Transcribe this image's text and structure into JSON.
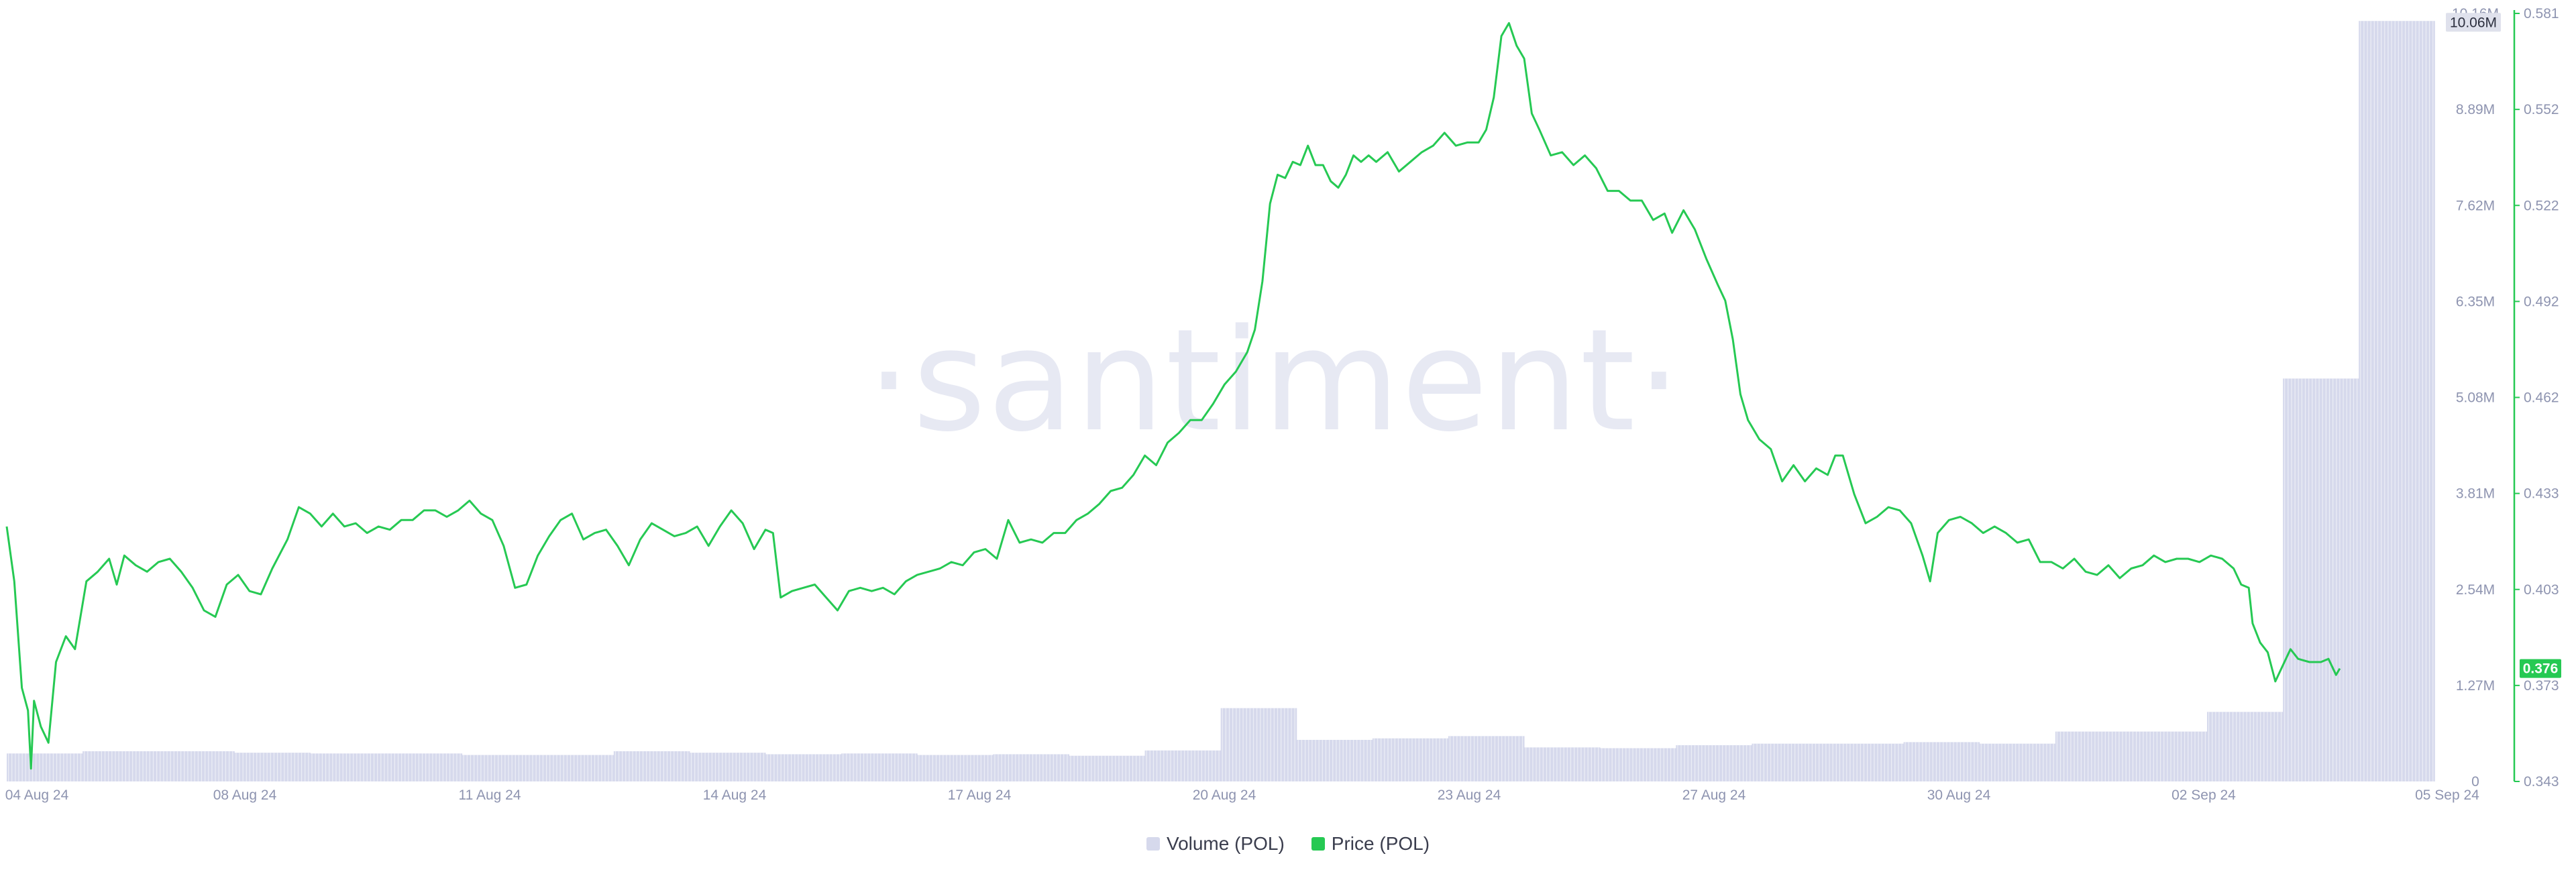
{
  "chart_data": {
    "type": "bar+line",
    "watermark": "·santiment·",
    "x_ticks": [
      "04 Aug 24",
      "08 Aug 24",
      "11 Aug 24",
      "14 Aug 24",
      "17 Aug 24",
      "20 Aug 24",
      "23 Aug 24",
      "27 Aug 24",
      "30 Aug 24",
      "02 Sep 24",
      "05 Sep 24"
    ],
    "x_range": [
      "04 Aug 24",
      "05 Sep 24"
    ],
    "volume_axis": {
      "ticks": [
        "0",
        "1.27M",
        "2.54M",
        "3.81M",
        "5.08M",
        "6.35M",
        "7.62M",
        "8.89M",
        "10.16M"
      ],
      "range": [
        0,
        10.16
      ],
      "unit": "M"
    },
    "price_axis": {
      "ticks": [
        "0.343",
        "0.373",
        "0.403",
        "0.433",
        "0.462",
        "0.492",
        "0.522",
        "0.552",
        "0.581"
      ],
      "range": [
        0.343,
        0.581
      ]
    },
    "volume_current_label": "10.06M",
    "price_current_label": "0.376",
    "series": [
      {
        "name": "Volume (POL)",
        "color": "#d6d9ec",
        "kind": "bar",
        "values_millions": [
          {
            "x": 0.0,
            "v": 0.37
          },
          {
            "x": 1.0,
            "v": 0.4
          },
          {
            "x": 2.0,
            "v": 0.4
          },
          {
            "x": 3.0,
            "v": 0.38
          },
          {
            "x": 4.0,
            "v": 0.37
          },
          {
            "x": 5.0,
            "v": 0.37
          },
          {
            "x": 6.0,
            "v": 0.35
          },
          {
            "x": 7.0,
            "v": 0.35
          },
          {
            "x": 8.0,
            "v": 0.4
          },
          {
            "x": 9.0,
            "v": 0.38
          },
          {
            "x": 10.0,
            "v": 0.36
          },
          {
            "x": 11.0,
            "v": 0.37
          },
          {
            "x": 12.0,
            "v": 0.35
          },
          {
            "x": 13.0,
            "v": 0.36
          },
          {
            "x": 14.0,
            "v": 0.34
          },
          {
            "x": 15.0,
            "v": 0.41
          },
          {
            "x": 16.0,
            "v": 0.97
          },
          {
            "x": 17.0,
            "v": 0.55
          },
          {
            "x": 18.0,
            "v": 0.57
          },
          {
            "x": 19.0,
            "v": 0.6
          },
          {
            "x": 20.0,
            "v": 0.45
          },
          {
            "x": 21.0,
            "v": 0.44
          },
          {
            "x": 22.0,
            "v": 0.48
          },
          {
            "x": 23.0,
            "v": 0.5
          },
          {
            "x": 24.0,
            "v": 0.5
          },
          {
            "x": 25.0,
            "v": 0.52
          },
          {
            "x": 26.0,
            "v": 0.5
          },
          {
            "x": 27.0,
            "v": 0.66
          },
          {
            "x": 28.0,
            "v": 0.66
          },
          {
            "x": 29.0,
            "v": 0.92
          },
          {
            "x": 30.0,
            "v": 5.33
          },
          {
            "x": 31.0,
            "v": 10.06
          }
        ]
      },
      {
        "name": "Price (POL)",
        "color": "#26c953",
        "kind": "line",
        "points": [
          [
            0.0,
            0.422
          ],
          [
            0.1,
            0.405
          ],
          [
            0.2,
            0.372
          ],
          [
            0.28,
            0.365
          ],
          [
            0.32,
            0.347
          ],
          [
            0.36,
            0.368
          ],
          [
            0.45,
            0.36
          ],
          [
            0.55,
            0.355
          ],
          [
            0.65,
            0.38
          ],
          [
            0.78,
            0.388
          ],
          [
            0.9,
            0.384
          ],
          [
            1.05,
            0.405
          ],
          [
            1.2,
            0.408
          ],
          [
            1.35,
            0.412
          ],
          [
            1.45,
            0.404
          ],
          [
            1.55,
            0.413
          ],
          [
            1.7,
            0.41
          ],
          [
            1.85,
            0.408
          ],
          [
            2.0,
            0.411
          ],
          [
            2.15,
            0.412
          ],
          [
            2.3,
            0.408
          ],
          [
            2.45,
            0.403
          ],
          [
            2.6,
            0.396
          ],
          [
            2.75,
            0.394
          ],
          [
            2.9,
            0.404
          ],
          [
            3.05,
            0.407
          ],
          [
            3.2,
            0.402
          ],
          [
            3.35,
            0.401
          ],
          [
            3.5,
            0.409
          ],
          [
            3.7,
            0.418
          ],
          [
            3.85,
            0.428
          ],
          [
            4.0,
            0.426
          ],
          [
            4.15,
            0.422
          ],
          [
            4.3,
            0.426
          ],
          [
            4.45,
            0.422
          ],
          [
            4.6,
            0.423
          ],
          [
            4.75,
            0.42
          ],
          [
            4.9,
            0.422
          ],
          [
            5.05,
            0.421
          ],
          [
            5.2,
            0.424
          ],
          [
            5.35,
            0.424
          ],
          [
            5.5,
            0.427
          ],
          [
            5.65,
            0.427
          ],
          [
            5.8,
            0.425
          ],
          [
            5.95,
            0.427
          ],
          [
            6.1,
            0.43
          ],
          [
            6.25,
            0.426
          ],
          [
            6.4,
            0.424
          ],
          [
            6.55,
            0.416
          ],
          [
            6.7,
            0.403
          ],
          [
            6.85,
            0.404
          ],
          [
            7.0,
            0.413
          ],
          [
            7.15,
            0.419
          ],
          [
            7.3,
            0.424
          ],
          [
            7.45,
            0.426
          ],
          [
            7.6,
            0.418
          ],
          [
            7.75,
            0.42
          ],
          [
            7.9,
            0.421
          ],
          [
            8.05,
            0.416
          ],
          [
            8.2,
            0.41
          ],
          [
            8.35,
            0.418
          ],
          [
            8.5,
            0.423
          ],
          [
            8.65,
            0.421
          ],
          [
            8.8,
            0.419
          ],
          [
            8.95,
            0.42
          ],
          [
            9.1,
            0.422
          ],
          [
            9.25,
            0.416
          ],
          [
            9.4,
            0.422
          ],
          [
            9.55,
            0.427
          ],
          [
            9.7,
            0.423
          ],
          [
            9.85,
            0.415
          ],
          [
            10.0,
            0.421
          ],
          [
            10.1,
            0.42
          ],
          [
            10.2,
            0.4
          ],
          [
            10.35,
            0.402
          ],
          [
            10.5,
            0.403
          ],
          [
            10.65,
            0.404
          ],
          [
            10.8,
            0.4
          ],
          [
            10.95,
            0.396
          ],
          [
            11.1,
            0.402
          ],
          [
            11.25,
            0.403
          ],
          [
            11.4,
            0.402
          ],
          [
            11.55,
            0.403
          ],
          [
            11.7,
            0.401
          ],
          [
            11.85,
            0.405
          ],
          [
            12.0,
            0.407
          ],
          [
            12.15,
            0.408
          ],
          [
            12.3,
            0.409
          ],
          [
            12.45,
            0.411
          ],
          [
            12.6,
            0.41
          ],
          [
            12.75,
            0.414
          ],
          [
            12.9,
            0.415
          ],
          [
            13.05,
            0.412
          ],
          [
            13.2,
            0.424
          ],
          [
            13.35,
            0.417
          ],
          [
            13.5,
            0.418
          ],
          [
            13.65,
            0.417
          ],
          [
            13.8,
            0.42
          ],
          [
            13.95,
            0.42
          ],
          [
            14.1,
            0.424
          ],
          [
            14.25,
            0.426
          ],
          [
            14.4,
            0.429
          ],
          [
            14.55,
            0.433
          ],
          [
            14.7,
            0.434
          ],
          [
            14.85,
            0.438
          ],
          [
            15.0,
            0.444
          ],
          [
            15.15,
            0.441
          ],
          [
            15.3,
            0.448
          ],
          [
            15.45,
            0.451
          ],
          [
            15.6,
            0.455
          ],
          [
            15.75,
            0.455
          ],
          [
            15.9,
            0.46
          ],
          [
            16.05,
            0.466
          ],
          [
            16.2,
            0.47
          ],
          [
            16.35,
            0.476
          ],
          [
            16.45,
            0.483
          ],
          [
            16.55,
            0.498
          ],
          [
            16.65,
            0.522
          ],
          [
            16.75,
            0.531
          ],
          [
            16.85,
            0.53
          ],
          [
            16.95,
            0.535
          ],
          [
            17.05,
            0.534
          ],
          [
            17.15,
            0.54
          ],
          [
            17.25,
            0.534
          ],
          [
            17.35,
            0.534
          ],
          [
            17.45,
            0.529
          ],
          [
            17.55,
            0.527
          ],
          [
            17.65,
            0.531
          ],
          [
            17.75,
            0.537
          ],
          [
            17.85,
            0.535
          ],
          [
            17.95,
            0.537
          ],
          [
            18.05,
            0.535
          ],
          [
            18.2,
            0.538
          ],
          [
            18.35,
            0.532
          ],
          [
            18.5,
            0.535
          ],
          [
            18.65,
            0.538
          ],
          [
            18.8,
            0.54
          ],
          [
            18.95,
            0.544
          ],
          [
            19.1,
            0.54
          ],
          [
            19.25,
            0.541
          ],
          [
            19.4,
            0.541
          ],
          [
            19.5,
            0.545
          ],
          [
            19.6,
            0.555
          ],
          [
            19.7,
            0.574
          ],
          [
            19.8,
            0.578
          ],
          [
            19.9,
            0.571
          ],
          [
            20.0,
            0.567
          ],
          [
            20.1,
            0.55
          ],
          [
            20.2,
            0.545
          ],
          [
            20.35,
            0.537
          ],
          [
            20.5,
            0.538
          ],
          [
            20.65,
            0.534
          ],
          [
            20.8,
            0.537
          ],
          [
            20.95,
            0.533
          ],
          [
            21.1,
            0.526
          ],
          [
            21.25,
            0.526
          ],
          [
            21.4,
            0.523
          ],
          [
            21.55,
            0.523
          ],
          [
            21.7,
            0.517
          ],
          [
            21.85,
            0.519
          ],
          [
            21.95,
            0.513
          ],
          [
            22.1,
            0.52
          ],
          [
            22.25,
            0.514
          ],
          [
            22.4,
            0.505
          ],
          [
            22.55,
            0.497
          ],
          [
            22.65,
            0.492
          ],
          [
            22.75,
            0.48
          ],
          [
            22.85,
            0.463
          ],
          [
            22.95,
            0.455
          ],
          [
            23.1,
            0.449
          ],
          [
            23.25,
            0.446
          ],
          [
            23.4,
            0.436
          ],
          [
            23.55,
            0.441
          ],
          [
            23.7,
            0.436
          ],
          [
            23.85,
            0.44
          ],
          [
            24.0,
            0.438
          ],
          [
            24.1,
            0.444
          ],
          [
            24.2,
            0.444
          ],
          [
            24.35,
            0.432
          ],
          [
            24.5,
            0.423
          ],
          [
            24.65,
            0.425
          ],
          [
            24.8,
            0.428
          ],
          [
            24.95,
            0.427
          ],
          [
            25.1,
            0.423
          ],
          [
            25.25,
            0.413
          ],
          [
            25.35,
            0.405
          ],
          [
            25.45,
            0.42
          ],
          [
            25.6,
            0.424
          ],
          [
            25.75,
            0.425
          ],
          [
            25.9,
            0.423
          ],
          [
            26.05,
            0.42
          ],
          [
            26.2,
            0.422
          ],
          [
            26.35,
            0.42
          ],
          [
            26.5,
            0.417
          ],
          [
            26.65,
            0.418
          ],
          [
            26.8,
            0.411
          ],
          [
            26.95,
            0.411
          ],
          [
            27.1,
            0.409
          ],
          [
            27.25,
            0.412
          ],
          [
            27.4,
            0.408
          ],
          [
            27.55,
            0.407
          ],
          [
            27.7,
            0.41
          ],
          [
            27.85,
            0.406
          ],
          [
            28.0,
            0.409
          ],
          [
            28.15,
            0.41
          ],
          [
            28.3,
            0.413
          ],
          [
            28.45,
            0.411
          ],
          [
            28.6,
            0.412
          ],
          [
            28.75,
            0.412
          ],
          [
            28.9,
            0.411
          ],
          [
            29.05,
            0.413
          ],
          [
            29.2,
            0.412
          ],
          [
            29.35,
            0.409
          ],
          [
            29.45,
            0.404
          ],
          [
            29.55,
            0.403
          ],
          [
            29.6,
            0.392
          ],
          [
            29.7,
            0.386
          ],
          [
            29.8,
            0.383
          ],
          [
            29.9,
            0.374
          ],
          [
            30.0,
            0.379
          ],
          [
            30.1,
            0.384
          ],
          [
            30.2,
            0.381
          ],
          [
            30.35,
            0.38
          ],
          [
            30.5,
            0.38
          ],
          [
            30.6,
            0.381
          ],
          [
            30.7,
            0.376
          ],
          [
            30.75,
            0.378
          ]
        ]
      }
    ],
    "legend": [
      "Volume (POL)",
      "Price (POL)"
    ],
    "legend_position": "bottom-center",
    "grid": false
  }
}
